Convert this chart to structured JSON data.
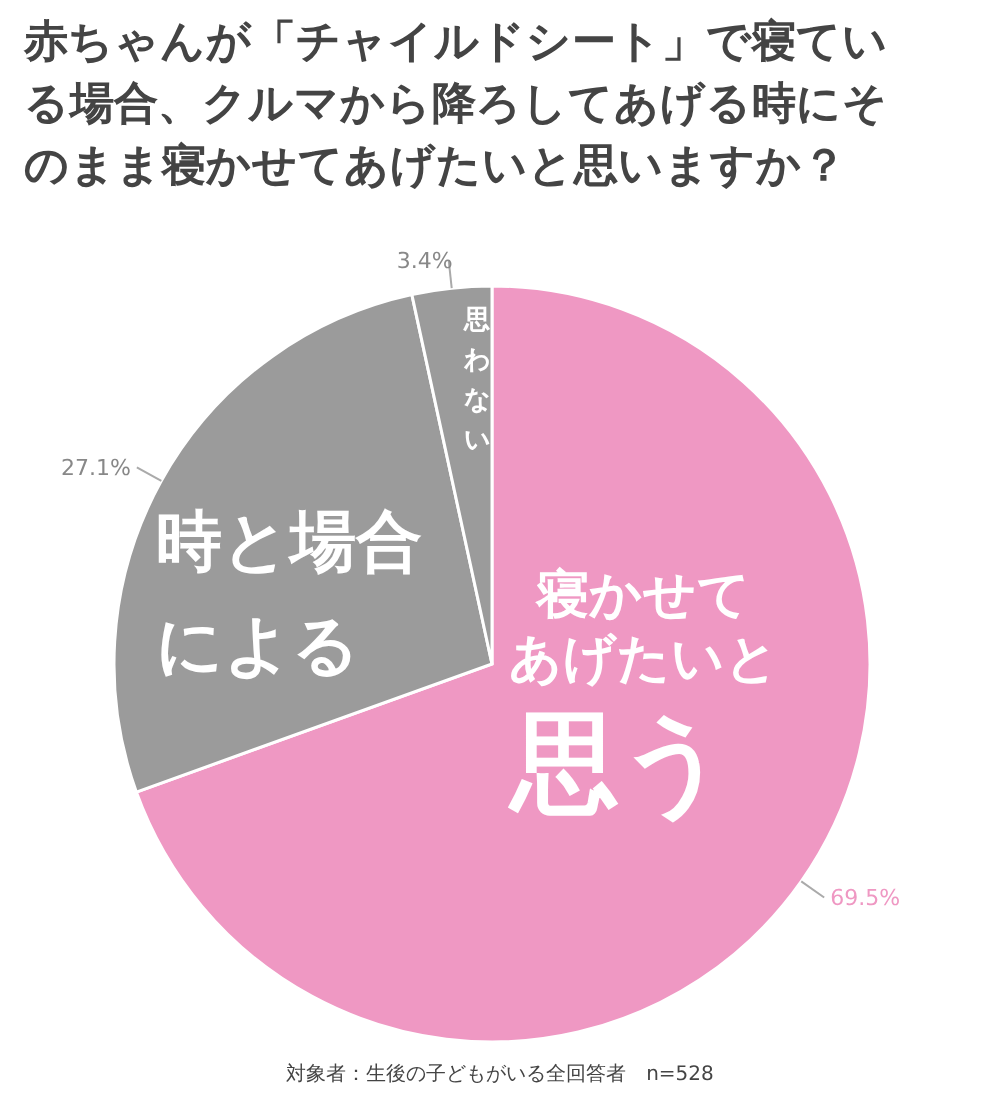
{
  "chart_data": {
    "type": "pie",
    "title": "赤ちゃんが「チャイルドシート」で寝ている場合、クルマから降ろしてあげる時にそのまま寝かせてあげたいと思いますか？",
    "categories": [
      "寝かせてあげたいと思う",
      "時と場合による",
      "思わない"
    ],
    "values": [
      69.5,
      27.1,
      3.4
    ],
    "colors": [
      "#ef98c3",
      "#9b9b9b",
      "#9b9b9b"
    ],
    "value_labels": [
      "69.5%",
      "27.1%",
      "3.4%"
    ],
    "annotations": [
      "対象者：生後の子どもがいる全回答者　n=528"
    ]
  }
}
